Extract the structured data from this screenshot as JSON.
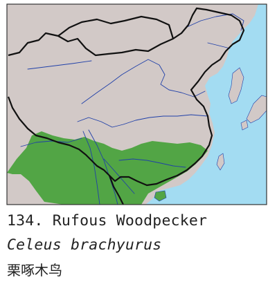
{
  "caption": {
    "number_name": "134. Rufous Woodpecker",
    "scientific_name": "Celeus brachyurus",
    "chinese_name": "栗啄木鸟"
  },
  "colors": {
    "sea": "#a3dcf2",
    "land": "#d2c9c7",
    "range": "#52a545",
    "border": "#111111",
    "river": "#1f3fa8",
    "frame": "#333333"
  }
}
